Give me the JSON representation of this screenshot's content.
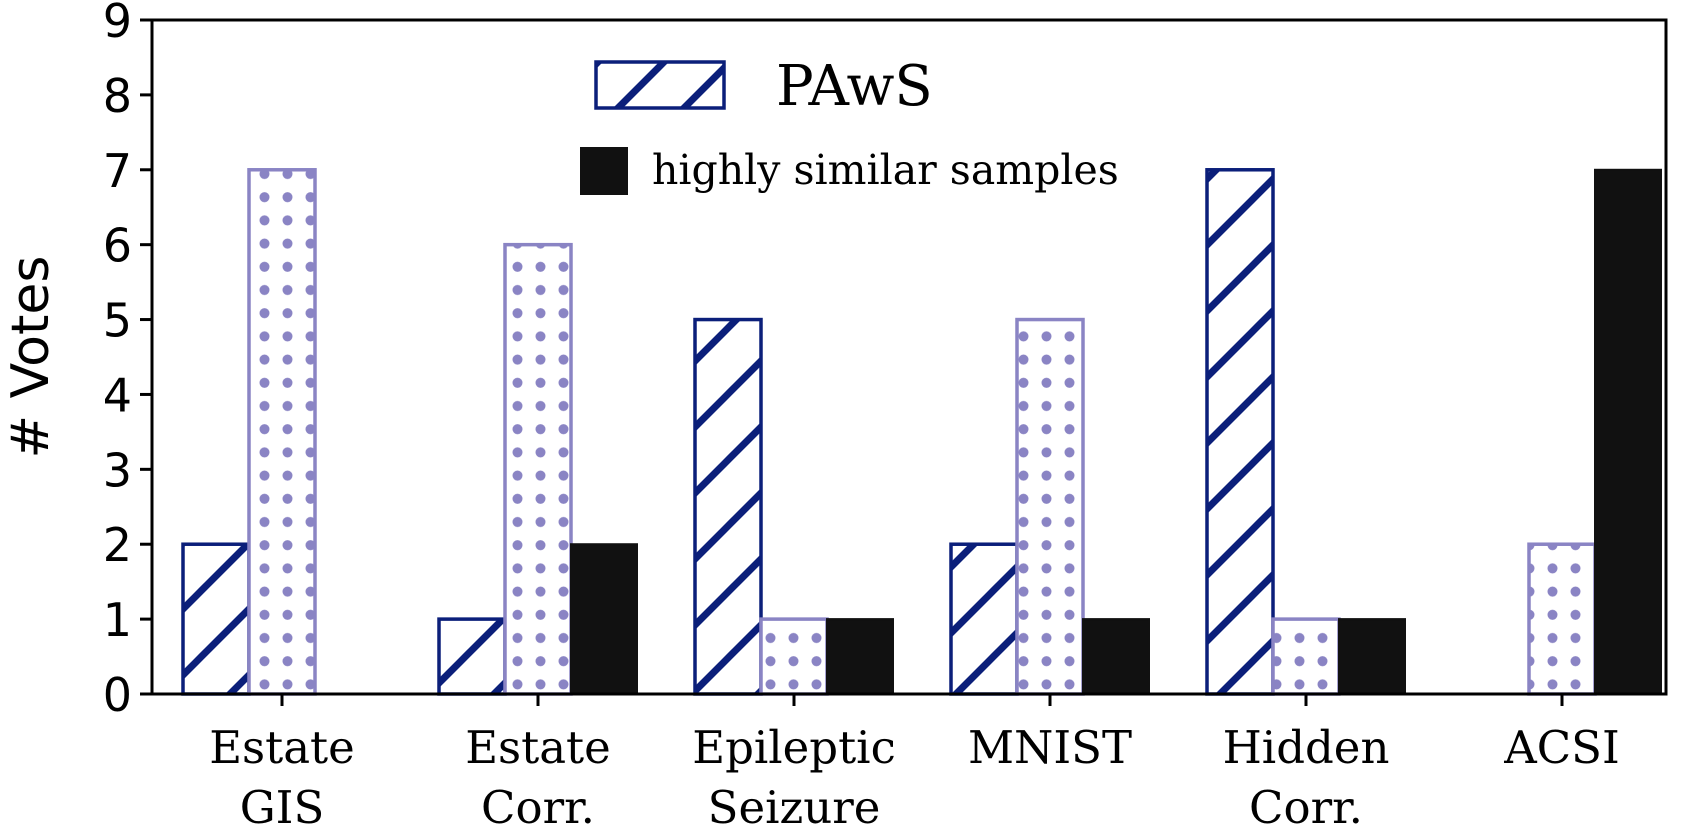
{
  "chart_data": {
    "type": "bar",
    "title": "",
    "xlabel": "",
    "ylabel": "# Votes",
    "ylim": [
      0,
      9
    ],
    "yticks": [
      0,
      1,
      2,
      3,
      4,
      5,
      6,
      7,
      8,
      9
    ],
    "categories": [
      [
        "Estate",
        "GIS"
      ],
      [
        "Estate",
        "Corr."
      ],
      [
        "Epileptic",
        "Seizure"
      ],
      [
        "MNIST"
      ],
      [
        "Hidden",
        "Corr."
      ],
      [
        "ACSI"
      ]
    ],
    "series": [
      {
        "name": "PAwS",
        "values": [
          2,
          1,
          5,
          2,
          7,
          0
        ],
        "pattern": "hatch",
        "color": "#0b1f7a"
      },
      {
        "name": "",
        "values": [
          7,
          6,
          1,
          5,
          1,
          2
        ],
        "pattern": "dots",
        "color": "#8a84c4"
      },
      {
        "name": "highly similar samples",
        "values": [
          0,
          2,
          1,
          1,
          1,
          7
        ],
        "pattern": "solid",
        "color": "#111111"
      }
    ],
    "legend": {
      "placement": "top-center",
      "entries": [
        "PAwS",
        "highly similar samples"
      ]
    },
    "grid": false
  }
}
